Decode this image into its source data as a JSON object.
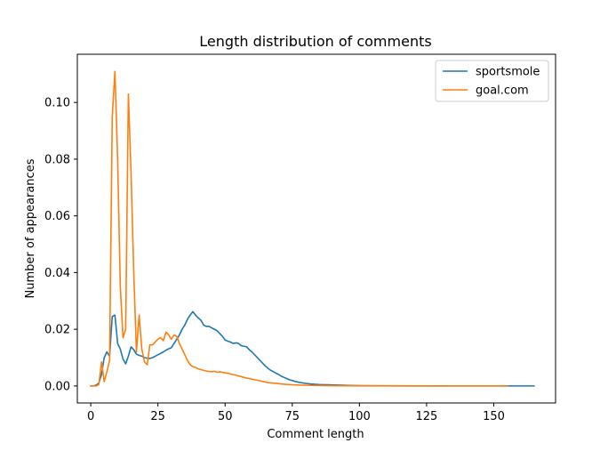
{
  "chart_data": {
    "type": "line",
    "title": "Length distribution of comments",
    "xlabel": "Comment length",
    "ylabel": "Number of appearances",
    "xlim": [
      -5,
      173
    ],
    "ylim": [
      -0.006,
      0.117
    ],
    "xticks": [
      0,
      25,
      50,
      75,
      100,
      125,
      150
    ],
    "yticks": [
      0.0,
      0.02,
      0.04,
      0.06,
      0.08,
      0.1
    ],
    "ytick_labels": [
      "0.00",
      "0.02",
      "0.04",
      "0.06",
      "0.08",
      "0.10"
    ],
    "grid": false,
    "legend_position": "top-right",
    "series": [
      {
        "name": "sportsmole",
        "color": "#1f77b4",
        "points": [
          [
            0,
            0
          ],
          [
            1,
            0
          ],
          [
            2,
            0.0003
          ],
          [
            3,
            0.001
          ],
          [
            4,
            0.004
          ],
          [
            5,
            0.01
          ],
          [
            6,
            0.012
          ],
          [
            7,
            0.0105
          ],
          [
            8,
            0.0245
          ],
          [
            9,
            0.025
          ],
          [
            10,
            0.015
          ],
          [
            11,
            0.013
          ],
          [
            12,
            0.0095
          ],
          [
            13,
            0.0078
          ],
          [
            14,
            0.0105
          ],
          [
            15,
            0.0138
          ],
          [
            16,
            0.0128
          ],
          [
            17,
            0.0112
          ],
          [
            18,
            0.0108
          ],
          [
            19,
            0.0105
          ],
          [
            20,
            0.01
          ],
          [
            21,
            0.0098
          ],
          [
            22,
            0.0097
          ],
          [
            23,
            0.01
          ],
          [
            24,
            0.0105
          ],
          [
            25,
            0.011
          ],
          [
            26,
            0.0115
          ],
          [
            27,
            0.012
          ],
          [
            28,
            0.0126
          ],
          [
            29,
            0.0131
          ],
          [
            30,
            0.0135
          ],
          [
            31,
            0.015
          ],
          [
            32,
            0.0165
          ],
          [
            33,
            0.018
          ],
          [
            34,
            0.02
          ],
          [
            35,
            0.0215
          ],
          [
            36,
            0.0235
          ],
          [
            37,
            0.025
          ],
          [
            38,
            0.0262
          ],
          [
            39,
            0.025
          ],
          [
            40,
            0.024
          ],
          [
            41,
            0.0232
          ],
          [
            42,
            0.0215
          ],
          [
            43,
            0.021
          ],
          [
            44,
            0.021
          ],
          [
            45,
            0.0205
          ],
          [
            46,
            0.02
          ],
          [
            47,
            0.0195
          ],
          [
            48,
            0.0185
          ],
          [
            49,
            0.0175
          ],
          [
            50,
            0.0162
          ],
          [
            51,
            0.0158
          ],
          [
            52,
            0.0155
          ],
          [
            53,
            0.015
          ],
          [
            54,
            0.0152
          ],
          [
            55,
            0.015
          ],
          [
            56,
            0.0142
          ],
          [
            57,
            0.014
          ],
          [
            58,
            0.0138
          ],
          [
            59,
            0.0128
          ],
          [
            60,
            0.012
          ],
          [
            61,
            0.011
          ],
          [
            62,
            0.01
          ],
          [
            63,
            0.009
          ],
          [
            64,
            0.008
          ],
          [
            65,
            0.007
          ],
          [
            66,
            0.0062
          ],
          [
            67,
            0.0055
          ],
          [
            68,
            0.005
          ],
          [
            69,
            0.0045
          ],
          [
            70,
            0.004
          ],
          [
            71,
            0.0034
          ],
          [
            72,
            0.003
          ],
          [
            73,
            0.0026
          ],
          [
            74,
            0.0022
          ],
          [
            75,
            0.0019
          ],
          [
            76,
            0.0016
          ],
          [
            78,
            0.0012
          ],
          [
            80,
            0.0009
          ],
          [
            82,
            0.0007
          ],
          [
            85,
            0.0005
          ],
          [
            88,
            0.0004
          ],
          [
            92,
            0.0003
          ],
          [
            96,
            0.0002
          ],
          [
            100,
            0.0001
          ],
          [
            110,
            5e-05
          ],
          [
            120,
            2e-05
          ],
          [
            130,
            1e-05
          ],
          [
            140,
            0
          ],
          [
            150,
            0
          ],
          [
            160,
            0
          ],
          [
            165,
            0
          ]
        ]
      },
      {
        "name": "goal.com",
        "color": "#ff7f0e",
        "points": [
          [
            0,
            0
          ],
          [
            1,
            0
          ],
          [
            2,
            0
          ],
          [
            3,
            0.0005
          ],
          [
            4,
            0.0085
          ],
          [
            5,
            0.0015
          ],
          [
            6,
            0.005
          ],
          [
            7,
            0.009
          ],
          [
            8,
            0.095
          ],
          [
            9,
            0.111
          ],
          [
            10,
            0.08
          ],
          [
            11,
            0.035
          ],
          [
            12,
            0.017
          ],
          [
            13,
            0.02
          ],
          [
            14,
            0.103
          ],
          [
            15,
            0.075
          ],
          [
            16,
            0.04
          ],
          [
            17,
            0.012
          ],
          [
            18,
            0.025
          ],
          [
            19,
            0.013
          ],
          [
            20,
            0.0085
          ],
          [
            21,
            0.0075
          ],
          [
            22,
            0.0145
          ],
          [
            23,
            0.0145
          ],
          [
            24,
            0.0155
          ],
          [
            25,
            0.0165
          ],
          [
            26,
            0.017
          ],
          [
            27,
            0.016
          ],
          [
            28,
            0.019
          ],
          [
            29,
            0.018
          ],
          [
            30,
            0.0165
          ],
          [
            31,
            0.018
          ],
          [
            32,
            0.0175
          ],
          [
            33,
            0.015
          ],
          [
            34,
            0.013
          ],
          [
            35,
            0.011
          ],
          [
            36,
            0.009
          ],
          [
            37,
            0.0075
          ],
          [
            38,
            0.0068
          ],
          [
            39,
            0.0065
          ],
          [
            40,
            0.006
          ],
          [
            41,
            0.0058
          ],
          [
            42,
            0.0055
          ],
          [
            43,
            0.0053
          ],
          [
            44,
            0.0051
          ],
          [
            45,
            0.005
          ],
          [
            46,
            0.0052
          ],
          [
            47,
            0.0048
          ],
          [
            48,
            0.005
          ],
          [
            49,
            0.0048
          ],
          [
            50,
            0.0046
          ],
          [
            51,
            0.0045
          ],
          [
            52,
            0.0042
          ],
          [
            53,
            0.004
          ],
          [
            54,
            0.0038
          ],
          [
            55,
            0.0035
          ],
          [
            56,
            0.0033
          ],
          [
            57,
            0.003
          ],
          [
            58,
            0.0028
          ],
          [
            59,
            0.0026
          ],
          [
            60,
            0.0024
          ],
          [
            61,
            0.0022
          ],
          [
            62,
            0.002
          ],
          [
            63,
            0.0018
          ],
          [
            64,
            0.0016
          ],
          [
            65,
            0.0014
          ],
          [
            66,
            0.0012
          ],
          [
            68,
            0.001
          ],
          [
            70,
            0.0008
          ],
          [
            72,
            0.0006
          ],
          [
            75,
            0.0004
          ],
          [
            78,
            0.0003
          ],
          [
            82,
            0.0002
          ],
          [
            88,
            0.0001
          ],
          [
            95,
            5e-05
          ],
          [
            105,
            2e-05
          ],
          [
            120,
            1e-05
          ],
          [
            135,
            0
          ],
          [
            150,
            0
          ],
          [
            155,
            0
          ]
        ]
      }
    ]
  }
}
